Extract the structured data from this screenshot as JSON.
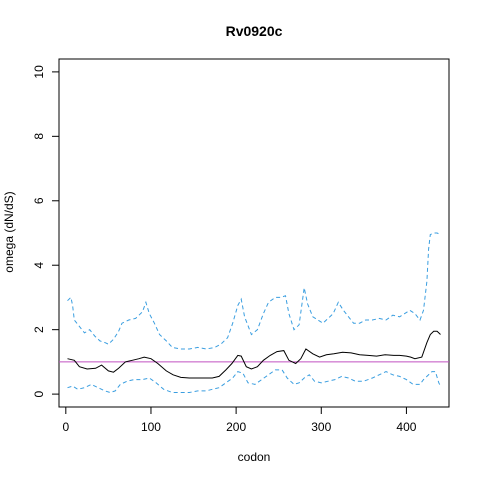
{
  "chart_data": {
    "type": "line",
    "title": "Rv0920c",
    "xlabel": "codon",
    "ylabel": "omega (dN/dS)",
    "xlim": [
      -8,
      450
    ],
    "ylim": [
      -0.4,
      10.4
    ],
    "xticks": [
      0,
      100,
      200,
      300,
      400
    ],
    "yticks": [
      0,
      2,
      4,
      6,
      8,
      10
    ],
    "grid": false,
    "legend": "none",
    "reference_line": {
      "y": 1,
      "color": "#c050c0"
    },
    "series": [
      {
        "style": "solid",
        "color": "#000000",
        "points": [
          [
            2,
            1.1
          ],
          [
            10,
            1.05
          ],
          [
            16,
            0.85
          ],
          [
            25,
            0.78
          ],
          [
            35,
            0.8
          ],
          [
            42,
            0.9
          ],
          [
            50,
            0.72
          ],
          [
            56,
            0.68
          ],
          [
            62,
            0.8
          ],
          [
            70,
            1.0
          ],
          [
            78,
            1.05
          ],
          [
            86,
            1.1
          ],
          [
            92,
            1.15
          ],
          [
            100,
            1.1
          ],
          [
            108,
            0.95
          ],
          [
            118,
            0.72
          ],
          [
            126,
            0.6
          ],
          [
            135,
            0.52
          ],
          [
            145,
            0.5
          ],
          [
            155,
            0.5
          ],
          [
            165,
            0.5
          ],
          [
            172,
            0.5
          ],
          [
            180,
            0.55
          ],
          [
            188,
            0.75
          ],
          [
            195,
            0.95
          ],
          [
            202,
            1.2
          ],
          [
            206,
            1.18
          ],
          [
            212,
            0.85
          ],
          [
            218,
            0.78
          ],
          [
            225,
            0.85
          ],
          [
            232,
            1.05
          ],
          [
            240,
            1.2
          ],
          [
            248,
            1.32
          ],
          [
            256,
            1.35
          ],
          [
            262,
            1.05
          ],
          [
            270,
            0.95
          ],
          [
            276,
            1.1
          ],
          [
            282,
            1.4
          ],
          [
            290,
            1.25
          ],
          [
            298,
            1.15
          ],
          [
            306,
            1.22
          ],
          [
            315,
            1.25
          ],
          [
            325,
            1.3
          ],
          [
            335,
            1.28
          ],
          [
            345,
            1.22
          ],
          [
            355,
            1.2
          ],
          [
            365,
            1.18
          ],
          [
            375,
            1.22
          ],
          [
            385,
            1.2
          ],
          [
            392,
            1.2
          ],
          [
            400,
            1.18
          ],
          [
            405,
            1.15
          ],
          [
            410,
            1.1
          ],
          [
            418,
            1.15
          ],
          [
            424,
            1.6
          ],
          [
            428,
            1.85
          ],
          [
            432,
            1.95
          ],
          [
            436,
            1.95
          ],
          [
            440,
            1.85
          ]
        ]
      },
      {
        "style": "dashed",
        "color": "#3a9ee0",
        "points": [
          [
            2,
            2.9
          ],
          [
            6,
            3.0
          ],
          [
            8,
            2.75
          ],
          [
            10,
            2.3
          ],
          [
            16,
            2.1
          ],
          [
            22,
            1.9
          ],
          [
            28,
            2.0
          ],
          [
            34,
            1.8
          ],
          [
            40,
            1.65
          ],
          [
            46,
            1.6
          ],
          [
            50,
            1.55
          ],
          [
            56,
            1.7
          ],
          [
            62,
            1.95
          ],
          [
            66,
            2.2
          ],
          [
            74,
            2.3
          ],
          [
            82,
            2.35
          ],
          [
            90,
            2.55
          ],
          [
            94,
            2.85
          ],
          [
            98,
            2.5
          ],
          [
            104,
            2.2
          ],
          [
            110,
            1.85
          ],
          [
            118,
            1.65
          ],
          [
            125,
            1.45
          ],
          [
            135,
            1.4
          ],
          [
            145,
            1.4
          ],
          [
            155,
            1.45
          ],
          [
            165,
            1.4
          ],
          [
            175,
            1.45
          ],
          [
            182,
            1.55
          ],
          [
            190,
            1.75
          ],
          [
            196,
            2.2
          ],
          [
            202,
            2.75
          ],
          [
            206,
            2.95
          ],
          [
            210,
            2.4
          ],
          [
            218,
            1.85
          ],
          [
            225,
            2.0
          ],
          [
            232,
            2.5
          ],
          [
            238,
            2.85
          ],
          [
            246,
            3.0
          ],
          [
            252,
            3.0
          ],
          [
            258,
            3.05
          ],
          [
            262,
            2.5
          ],
          [
            268,
            2.0
          ],
          [
            274,
            2.15
          ],
          [
            280,
            3.3
          ],
          [
            284,
            2.8
          ],
          [
            290,
            2.4
          ],
          [
            296,
            2.3
          ],
          [
            302,
            2.2
          ],
          [
            308,
            2.35
          ],
          [
            314,
            2.5
          ],
          [
            320,
            2.85
          ],
          [
            326,
            2.6
          ],
          [
            332,
            2.4
          ],
          [
            338,
            2.2
          ],
          [
            345,
            2.2
          ],
          [
            352,
            2.3
          ],
          [
            360,
            2.3
          ],
          [
            368,
            2.35
          ],
          [
            376,
            2.3
          ],
          [
            384,
            2.45
          ],
          [
            392,
            2.4
          ],
          [
            398,
            2.5
          ],
          [
            404,
            2.6
          ],
          [
            410,
            2.5
          ],
          [
            416,
            2.3
          ],
          [
            420,
            2.6
          ],
          [
            424,
            3.5
          ],
          [
            426,
            4.5
          ],
          [
            428,
            4.95
          ],
          [
            432,
            5.0
          ],
          [
            436,
            5.0
          ],
          [
            440,
            4.95
          ]
        ]
      },
      {
        "style": "dashed",
        "color": "#3a9ee0",
        "points": [
          [
            2,
            0.2
          ],
          [
            8,
            0.25
          ],
          [
            14,
            0.15
          ],
          [
            22,
            0.2
          ],
          [
            30,
            0.3
          ],
          [
            38,
            0.2
          ],
          [
            46,
            0.1
          ],
          [
            52,
            0.05
          ],
          [
            58,
            0.1
          ],
          [
            64,
            0.3
          ],
          [
            72,
            0.4
          ],
          [
            80,
            0.45
          ],
          [
            90,
            0.45
          ],
          [
            98,
            0.5
          ],
          [
            106,
            0.35
          ],
          [
            115,
            0.15
          ],
          [
            125,
            0.05
          ],
          [
            135,
            0.05
          ],
          [
            145,
            0.05
          ],
          [
            155,
            0.1
          ],
          [
            165,
            0.1
          ],
          [
            172,
            0.15
          ],
          [
            180,
            0.2
          ],
          [
            188,
            0.35
          ],
          [
            196,
            0.5
          ],
          [
            202,
            0.7
          ],
          [
            208,
            0.65
          ],
          [
            214,
            0.35
          ],
          [
            222,
            0.3
          ],
          [
            230,
            0.45
          ],
          [
            238,
            0.6
          ],
          [
            246,
            0.75
          ],
          [
            254,
            0.75
          ],
          [
            260,
            0.5
          ],
          [
            268,
            0.3
          ],
          [
            274,
            0.35
          ],
          [
            280,
            0.5
          ],
          [
            286,
            0.6
          ],
          [
            292,
            0.4
          ],
          [
            300,
            0.35
          ],
          [
            308,
            0.4
          ],
          [
            316,
            0.45
          ],
          [
            324,
            0.55
          ],
          [
            332,
            0.5
          ],
          [
            340,
            0.4
          ],
          [
            350,
            0.4
          ],
          [
            360,
            0.5
          ],
          [
            368,
            0.6
          ],
          [
            376,
            0.7
          ],
          [
            384,
            0.6
          ],
          [
            392,
            0.55
          ],
          [
            400,
            0.45
          ],
          [
            408,
            0.3
          ],
          [
            416,
            0.3
          ],
          [
            420,
            0.45
          ],
          [
            426,
            0.6
          ],
          [
            430,
            0.7
          ],
          [
            434,
            0.7
          ],
          [
            438,
            0.35
          ],
          [
            440,
            0.25
          ]
        ]
      }
    ]
  }
}
